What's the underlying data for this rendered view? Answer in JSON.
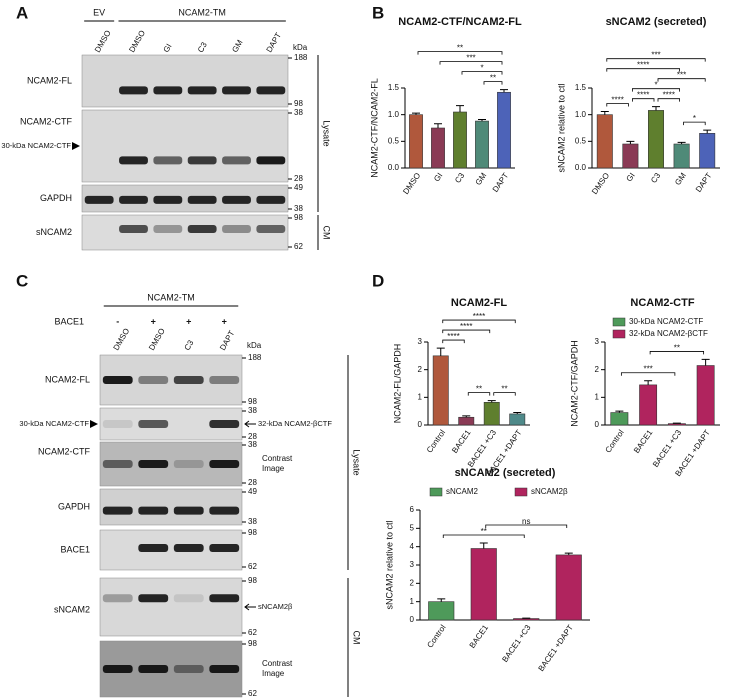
{
  "panel_labels": [
    "A",
    "B",
    "C",
    "D"
  ],
  "blot_a": {
    "groups": [
      "EV",
      "NCAM2-TM"
    ],
    "lanes": [
      "DMSO",
      "DMSO",
      "GI",
      "C3",
      "GM",
      "DAPT"
    ],
    "kda": "kDa",
    "strips": [
      {
        "label": "NCAM2-FL",
        "markers": [
          188,
          98
        ]
      },
      {
        "label": "NCAM2-CTF",
        "arrow_left": "30-kDa NCAM2-CTF",
        "markers": [
          38,
          28
        ]
      },
      {
        "label": "GAPDH",
        "markers": [
          49,
          38
        ]
      },
      {
        "label": "sNCAM2",
        "markers": [
          98,
          62
        ]
      }
    ],
    "sides": [
      "Lysate",
      "CM"
    ]
  },
  "blot_c": {
    "group": "NCAM2-TM",
    "treatment": "BACE1",
    "treatment_states": [
      "-",
      "+",
      "+",
      "+"
    ],
    "lanes": [
      "DMSO",
      "DMSO",
      "C3",
      "DAPT"
    ],
    "kda": "kDa",
    "strips": [
      {
        "label": "NCAM2-FL",
        "markers": [
          188,
          98
        ]
      },
      {
        "label": "NCAM2-CTF",
        "arrow_left": "30-kDa NCAM2-CTF",
        "arrow_right": "32-kDa NCAM2-βCTF",
        "markers": [
          38,
          28
        ]
      },
      {
        "note": [
          "Contrast",
          "Image"
        ],
        "markers": [
          38,
          28
        ]
      },
      {
        "label": "GAPDH",
        "markers": [
          49,
          38
        ]
      },
      {
        "label": "BACE1",
        "markers": [
          98,
          62
        ]
      },
      {
        "label": "sNCAM2",
        "arrow_right": "sNCAM2β",
        "markers": [
          98,
          62
        ]
      },
      {
        "note": [
          "Contrast",
          "Image"
        ],
        "markers": [
          98,
          62
        ]
      }
    ],
    "sides": [
      "Lysate",
      "CM"
    ]
  },
  "chart_data": [
    {
      "type": "bar",
      "title": "NCAM2-CTF/NCAM2-FL",
      "ylabel": "NCAM2-CTF/NCAM2-FL",
      "categories": [
        "DMSO",
        "GI",
        "C3",
        "GM",
        "DAPT"
      ],
      "values": [
        1.0,
        0.75,
        1.05,
        0.88,
        1.42
      ],
      "errors": [
        0.03,
        0.08,
        0.12,
        0.03,
        0.05
      ],
      "colors": [
        "#b0583c",
        "#8a3a55",
        "#5f7f2e",
        "#4f8a78",
        "#4d63b8"
      ],
      "ylim": [
        0,
        1.5
      ],
      "yticks": [
        {
          "value": 0,
          "label": "0.0"
        },
        0.5,
        {
          "value": 1,
          "label": "1.0"
        },
        1.5
      ],
      "comparisons": [
        {
          "from": "DMSO",
          "to": "DAPT",
          "label": "**"
        },
        {
          "from": "GI",
          "to": "DAPT",
          "label": "***"
        },
        {
          "from": "C3",
          "to": "DAPT",
          "label": "*"
        },
        {
          "from": "GM",
          "to": "DAPT",
          "label": "**"
        }
      ]
    },
    {
      "type": "bar",
      "title": "sNCAM2 (secreted)",
      "ylabel": "sNCAM2 relative to ctl",
      "categories": [
        "DMSO",
        "GI",
        "C3",
        "GM",
        "DAPT"
      ],
      "values": [
        1.0,
        0.45,
        1.08,
        0.45,
        0.65
      ],
      "errors": [
        0.06,
        0.05,
        0.07,
        0.03,
        0.06
      ],
      "colors": [
        "#b0583c",
        "#8a3a55",
        "#5f7f2e",
        "#4f8a78",
        "#4d63b8"
      ],
      "ylim": [
        0,
        1.5
      ],
      "yticks": [
        {
          "value": 0,
          "label": "0.0"
        },
        0.5,
        {
          "value": 1,
          "label": "1.0"
        },
        1.5
      ],
      "comparisons": [
        {
          "from": "DMSO",
          "to": "DAPT",
          "label": "***"
        },
        {
          "from": "DMSO",
          "to": "GM",
          "label": "****"
        },
        {
          "from": "GI",
          "to": "GM",
          "label": "*"
        },
        {
          "from": "C3",
          "to": "DAPT",
          "label": "***"
        },
        {
          "from": "C3",
          "to": "GM",
          "label": "****"
        },
        {
          "from": "GM",
          "to": "DAPT",
          "label": "*"
        },
        {
          "from": "DMSO",
          "to": "GI",
          "label": "****"
        },
        {
          "from": "GI",
          "to": "C3",
          "label": "****"
        }
      ]
    },
    {
      "type": "bar",
      "title": "NCAM2-FL",
      "ylabel": "NCAM2-FL/GAPDH",
      "categories": [
        "Control",
        "BACE1",
        "BACE1 +C3",
        "BACE1 +DAPT"
      ],
      "values": [
        2.5,
        0.28,
        0.82,
        0.4
      ],
      "errors": [
        0.28,
        0.05,
        0.06,
        0.05
      ],
      "colors": [
        "#b0583c",
        "#8a3a55",
        "#5f7f2e",
        "#4f8a8a"
      ],
      "ylim": [
        0,
        3
      ],
      "yticks": [
        0,
        1,
        2,
        3
      ],
      "comparisons": [
        {
          "from": "Control",
          "to": "BACE1 +DAPT",
          "label": "****"
        },
        {
          "from": "Control",
          "to": "BACE1 +C3",
          "label": "****"
        },
        {
          "from": "Control",
          "to": "BACE1",
          "label": "****"
        },
        {
          "from": "BACE1",
          "to": "BACE1 +C3",
          "label": "**"
        },
        {
          "from": "BACE1 +C3",
          "to": "BACE1 +DAPT",
          "label": "**"
        }
      ]
    },
    {
      "type": "bar",
      "title": "NCAM2-CTF",
      "ylabel": "NCAM2-CTF/GAPDH",
      "categories": [
        "Control",
        "BACE1",
        "BACE1 +C3",
        "BACE1 +DAPT"
      ],
      "series": [
        {
          "name": "30-kDa NCAM2-CTF",
          "color": "#4e9a5a",
          "values": [
            0.45,
            null,
            null,
            null
          ],
          "errors": [
            0.05,
            null,
            null,
            null
          ]
        },
        {
          "name": "32-kDa NCAM2-βCTF",
          "color": "#b0245e",
          "values": [
            null,
            1.45,
            0.05,
            2.15
          ],
          "errors": [
            null,
            0.15,
            0.02,
            0.22
          ]
        }
      ],
      "legend": "top-left",
      "ylim": [
        0,
        3
      ],
      "yticks": [
        0,
        1,
        2,
        3
      ],
      "comparisons": [
        {
          "from": "Control",
          "to": "BACE1 +C3",
          "label": "***"
        },
        {
          "from": "BACE1",
          "to": "BACE1 +DAPT",
          "label": "**"
        }
      ]
    },
    {
      "type": "bar",
      "title": "sNCAM2 (secreted)",
      "ylabel": "sNCAM2 relative to ctl",
      "categories": [
        "Control",
        "BACE1",
        "BACE1 +C3",
        "BACE1 +DAPT"
      ],
      "series": [
        {
          "name": "sNCAM2",
          "color": "#4e9a5a",
          "values": [
            1.0,
            null,
            null,
            null
          ],
          "errors": [
            0.15,
            null,
            null,
            null
          ]
        },
        {
          "name": "sNCAM2β",
          "color": "#b0245e",
          "values": [
            null,
            3.9,
            0.08,
            3.55
          ],
          "errors": [
            null,
            0.3,
            0.02,
            0.1
          ]
        }
      ],
      "legend": "top",
      "ylim": [
        0,
        6
      ],
      "yticks": [
        0,
        1,
        2,
        3,
        4,
        5,
        6
      ],
      "comparisons": [
        {
          "from": "Control",
          "to": "BACE1 +C3",
          "label": "**"
        },
        {
          "from": "BACE1",
          "to": "BACE1 +DAPT",
          "label": "ns"
        }
      ]
    }
  ]
}
